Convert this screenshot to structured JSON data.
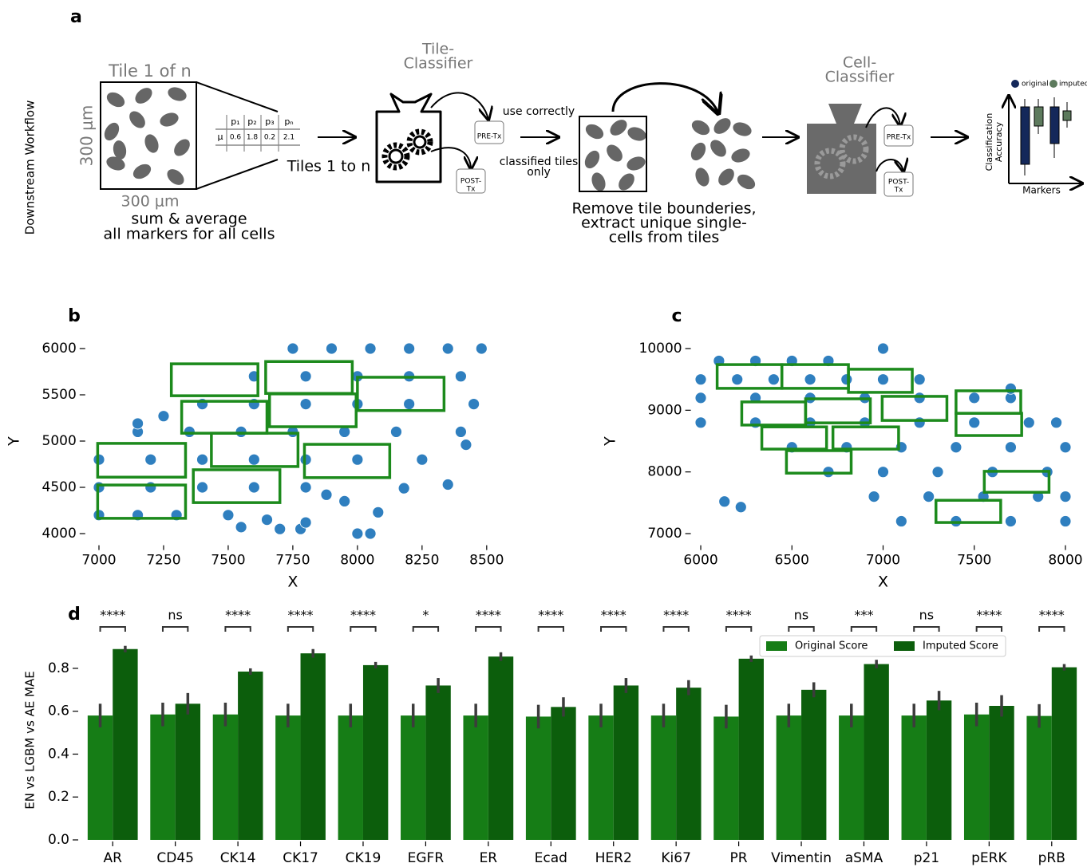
{
  "panel_a": {
    "label": "a",
    "side_label": "Downstream Workflow",
    "tile_title": "Tile 1 of n",
    "tile_height": "300 μm",
    "tile_width": "300 μm",
    "table": {
      "header": [
        "p₁",
        "p₂",
        "p₃",
        "pₙ"
      ],
      "row_label": "μ",
      "values": [
        0.6,
        1.8,
        0.2,
        2.1
      ]
    },
    "tile_caption": [
      "sum & average",
      "all markers for all cells"
    ],
    "tiles_label": "Tiles 1 to n",
    "tile_classifier": [
      "Tile-",
      "Classifier"
    ],
    "pre": "PRE-Tx",
    "post": [
      "POST-",
      "Tx"
    ],
    "use_correctly": "use correctly",
    "classified": [
      "classified tiles",
      "only"
    ],
    "extract_caption": [
      "Remove tile bounderies,",
      "extract unique single-",
      "cells from tiles"
    ],
    "cell_classifier": [
      "Cell-",
      "Classifier"
    ],
    "pre2": "PRE-Tx",
    "post2": [
      "POST-",
      "Tx"
    ],
    "mini_legend": [
      "original",
      "imputed"
    ],
    "mini_ylabel": [
      "Classification",
      "Accuracy"
    ],
    "mini_xlabel": "Markers"
  },
  "chart_data": [
    {
      "type": "scatter",
      "panel": "b",
      "color": "#2f7fbf",
      "xlabel": "X",
      "ylabel": "Y",
      "xlim": [
        6950,
        8550
      ],
      "ylim": [
        3900,
        6100
      ],
      "xticks": [
        7000,
        7250,
        7500,
        7750,
        8000,
        8250,
        8500
      ],
      "yticks": [
        4000,
        4500,
        5000,
        5500,
        6000
      ],
      "x": [
        7750,
        7900,
        8050,
        8200,
        8350,
        8480,
        7600,
        7800,
        8000,
        8200,
        8400,
        7400,
        7600,
        7800,
        8000,
        8200,
        8450,
        7150,
        7350,
        7550,
        7750,
        7950,
        8150,
        8400,
        7000,
        7200,
        7400,
        7600,
        7800,
        8000,
        8250,
        7000,
        7200,
        7400,
        7600,
        7800,
        7000,
        7150,
        7300,
        7500,
        7550,
        7650,
        7700,
        7780,
        7800,
        7880,
        7950,
        8000,
        8050,
        8080,
        8180,
        8350,
        8420,
        7150,
        7250
      ],
      "y": [
        6000,
        6000,
        6000,
        6000,
        6000,
        6000,
        5700,
        5700,
        5700,
        5700,
        5700,
        5400,
        5400,
        5400,
        5400,
        5400,
        5400,
        5100,
        5100,
        5100,
        5100,
        5100,
        5100,
        5100,
        4800,
        4800,
        4800,
        4800,
        4800,
        4800,
        4800,
        4500,
        4500,
        4500,
        4500,
        4500,
        4200,
        4200,
        4200,
        4200,
        4070,
        4150,
        4050,
        4050,
        4120,
        4420,
        4350,
        4000,
        4000,
        4230,
        4490,
        4530,
        4960,
        5190,
        5270
      ],
      "tiles": {
        "color": "#1c8a1c",
        "x0": [
          7280,
          7645,
          8000,
          7320,
          7660,
          6995,
          7435,
          7795,
          6995,
          7365
        ],
        "x1": [
          7615,
          7980,
          8335,
          7650,
          7995,
          7335,
          7770,
          8125,
          7335,
          7700
        ],
        "y0": [
          5490,
          5515,
          5330,
          5085,
          5155,
          4610,
          4725,
          4605,
          4165,
          4335
        ],
        "y1": [
          5835,
          5860,
          5690,
          5430,
          5510,
          4975,
          5085,
          4965,
          4525,
          4690
        ]
      }
    },
    {
      "type": "scatter",
      "panel": "c",
      "color": "#2f7fbf",
      "xlabel": "X",
      "ylabel": "Y",
      "xlim": [
        5950,
        8050
      ],
      "ylim": [
        6850,
        10150
      ],
      "xticks": [
        6000,
        6500,
        7000,
        7500,
        8000
      ],
      "yticks": [
        7000,
        8000,
        9000,
        10000
      ],
      "x": [
        6100,
        6300,
        6500,
        6700,
        6000,
        6200,
        6400,
        6600,
        6800,
        7000,
        7200,
        6000,
        6300,
        6600,
        6900,
        7200,
        7500,
        7700,
        6000,
        6300,
        6600,
        6900,
        7200,
        7500,
        7800,
        7950,
        6500,
        6800,
        7100,
        7400,
        7700,
        8000,
        6700,
        7000,
        7300,
        7600,
        7900,
        6950,
        7250,
        7550,
        7850,
        8000,
        7100,
        7400,
        7700,
        8000,
        6130,
        6220,
        7000,
        7700
      ],
      "y": [
        9800,
        9800,
        9800,
        9800,
        9500,
        9500,
        9500,
        9500,
        9500,
        9500,
        9500,
        9200,
        9200,
        9200,
        9200,
        9200,
        9200,
        9200,
        8800,
        8800,
        8800,
        8800,
        8800,
        8800,
        8800,
        8800,
        8400,
        8400,
        8400,
        8400,
        8400,
        8400,
        8000,
        8000,
        8000,
        8000,
        8000,
        7600,
        7600,
        7600,
        7600,
        7600,
        7200,
        7200,
        7200,
        7200,
        7520,
        7430,
        10000,
        9350
      ],
      "tiles": {
        "color": "#1c8a1c",
        "x0": [
          6090,
          6445,
          6810,
          6225,
          6575,
          6995,
          7400,
          7400,
          6335,
          6725,
          6470,
          7555,
          7290
        ],
        "x1": [
          6445,
          6810,
          7160,
          6575,
          6930,
          7350,
          7755,
          7760,
          6690,
          7085,
          6825,
          7910,
          7645
        ],
        "y0": [
          9355,
          9355,
          9290,
          8760,
          8795,
          8835,
          8950,
          8590,
          8370,
          8370,
          7980,
          7670,
          7180
        ],
        "y1": [
          9740,
          9740,
          9665,
          9135,
          9185,
          9225,
          9315,
          8950,
          8730,
          8730,
          8345,
          8010,
          7540
        ]
      }
    },
    {
      "type": "bar",
      "panel": "d",
      "ylabel": "EN vs LGBM vs AE MAE",
      "categories": [
        "AR",
        "CD45",
        "CK14",
        "CK17",
        "CK19",
        "EGFR",
        "ER",
        "Ecad",
        "HER2",
        "Ki67",
        "PR",
        "Vimentin",
        "aSMA",
        "p21",
        "pERK",
        "pRB"
      ],
      "series": [
        {
          "name": "Original Score",
          "color": "#167d16",
          "values": [
            0.58,
            0.585,
            0.585,
            0.58,
            0.58,
            0.58,
            0.58,
            0.575,
            0.58,
            0.58,
            0.575,
            0.58,
            0.58,
            0.58,
            0.585,
            0.578
          ],
          "errors": [
            0.055,
            0.055,
            0.055,
            0.055,
            0.055,
            0.055,
            0.055,
            0.055,
            0.055,
            0.055,
            0.055,
            0.055,
            0.055,
            0.055,
            0.055,
            0.055
          ]
        },
        {
          "name": "Imputed Score",
          "color": "#0c5e0c",
          "values": [
            0.89,
            0.635,
            0.785,
            0.87,
            0.815,
            0.72,
            0.855,
            0.62,
            0.72,
            0.71,
            0.845,
            0.7,
            0.82,
            0.65,
            0.625,
            0.805
          ],
          "errors": [
            0.015,
            0.05,
            0.015,
            0.02,
            0.015,
            0.035,
            0.02,
            0.045,
            0.035,
            0.035,
            0.015,
            0.035,
            0.02,
            0.045,
            0.05,
            0.015
          ]
        }
      ],
      "significance": [
        "****",
        "ns",
        "****",
        "****",
        "****",
        "*",
        "****",
        "****",
        "****",
        "****",
        "****",
        "ns",
        "***",
        "ns",
        "****",
        "****"
      ],
      "ylim": [
        0,
        0.93
      ],
      "yticks": [
        {
          "value": 0,
          "label": "0.0"
        },
        0.2,
        0.4,
        0.6,
        0.8
      ],
      "legend": "upper right"
    }
  ]
}
